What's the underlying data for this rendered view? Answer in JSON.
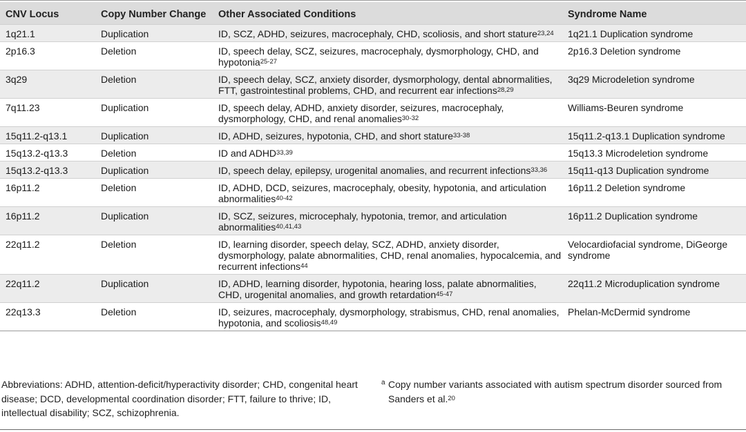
{
  "table": {
    "headers": [
      "CNV Locus",
      "Copy Number Change",
      "Other Associated Conditions",
      "Syndrome Name"
    ],
    "rows": [
      {
        "locus": "1q21.1",
        "change": "Duplication",
        "conditions": "ID, SCZ, ADHD, seizures, macrocephaly, CHD, scoliosis, and short stature",
        "refs": "23,24",
        "syndrome": "1q21.1 Duplication syndrome"
      },
      {
        "locus": "2p16.3",
        "change": "Deletion",
        "conditions": "ID, speech delay, SCZ, seizures, macrocephaly, dysmorphology, CHD, and hypotonia",
        "refs": "25-27",
        "syndrome": "2p16.3 Deletion syndrome"
      },
      {
        "locus": "3q29",
        "change": "Deletion",
        "conditions": "ID, speech delay, SCZ, anxiety disorder, dysmorphology, dental abnormalities, FTT, gastrointestinal problems, CHD, and recurrent ear infections",
        "refs": "28,29",
        "syndrome": "3q29 Microdeletion syndrome"
      },
      {
        "locus": "7q11.23",
        "change": "Duplication",
        "conditions": "ID, speech delay, ADHD, anxiety disorder, seizures, macrocephaly, dysmorphology, CHD, and renal anomalies",
        "refs": "30-32",
        "syndrome": "Williams-Beuren syndrome"
      },
      {
        "locus": "15q11.2-q13.1",
        "change": "Duplication",
        "conditions": "ID, ADHD, seizures, hypotonia, CHD, and short stature",
        "refs": "33-38",
        "syndrome": "15q11.2-q13.1 Duplication syndrome"
      },
      {
        "locus": "15q13.2-q13.3",
        "change": "Deletion",
        "conditions": "ID and ADHD",
        "refs": "33,39",
        "syndrome": "15q13.3 Microdeletion syndrome"
      },
      {
        "locus": "15q13.2-q13.3",
        "change": "Duplication",
        "conditions": "ID, speech delay, epilepsy, urogenital anomalies, and recurrent infections",
        "refs": "33,36",
        "syndrome": "15q11-q13 Duplication syndrome"
      },
      {
        "locus": "16p11.2",
        "change": "Deletion",
        "conditions": "ID, ADHD, DCD, seizures, macrocephaly, obesity, hypotonia, and articulation abnormalities",
        "refs": "40-42",
        "syndrome": "16p11.2 Deletion syndrome"
      },
      {
        "locus": "16p11.2",
        "change": "Duplication",
        "conditions": "ID, SCZ, seizures, microcephaly, hypotonia, tremor, and articulation abnormalities",
        "refs": "40,41,43",
        "syndrome": "16p11.2 Duplication syndrome"
      },
      {
        "locus": "22q11.2",
        "change": "Deletion",
        "conditions": "ID, learning disorder, speech delay, SCZ, ADHD, anxiety disorder, dysmorphology, palate abnormalities, CHD, renal anomalies, hypocalcemia, and recurrent infections",
        "refs": "44",
        "syndrome": "Velocardiofacial syndrome, DiGeorge syndrome"
      },
      {
        "locus": "22q11.2",
        "change": "Duplication",
        "conditions": "ID, ADHD, learning disorder, hypotonia, hearing loss, palate abnormalities, CHD, urogenital anomalies, and growth retardation",
        "refs": "45-47",
        "syndrome": "22q11.2 Microduplication syndrome"
      },
      {
        "locus": "22q13.3",
        "change": "Deletion",
        "conditions": "ID, seizures, macrocephaly, dysmorphology, strabismus, CHD, renal anomalies, hypotonia, and scoliosis",
        "refs": "48,49",
        "syndrome": "Phelan-McDermid syndrome"
      }
    ]
  },
  "footnotes": {
    "abbreviations": "Abbreviations: ADHD, attention-deficit/hyperactivity disorder; CHD, congenital heart disease; DCD, developmental coordination disorder; FTT, failure to thrive; ID, intellectual disability; SCZ, schizophrenia.",
    "marker": "a",
    "note": "Copy number variants associated with autism spectrum disorder sourced from Sanders et al.",
    "note_ref": "20"
  }
}
